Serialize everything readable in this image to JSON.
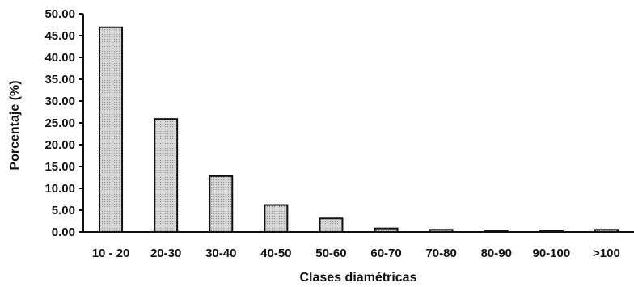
{
  "chart_data": {
    "type": "bar",
    "title": "",
    "xlabel": "Clases diamétricas",
    "ylabel": "Porcentaje (%)",
    "categories": [
      "10 - 20",
      "20-30",
      "30-40",
      "40-50",
      "50-60",
      "60-70",
      "70-80",
      "80-90",
      "90-100",
      ">100"
    ],
    "values": [
      46.9,
      25.9,
      12.8,
      6.2,
      3.1,
      0.8,
      0.5,
      0.3,
      0.2,
      0.5
    ],
    "ylim": [
      0,
      50
    ],
    "yticks": [
      "0.00",
      "5.00",
      "10.00",
      "15.00",
      "20.00",
      "25.00",
      "30.00",
      "35.00",
      "40.00",
      "45.00",
      "50.00"
    ],
    "grid": false,
    "legend": "none",
    "bar_color": "#cfcfcf"
  }
}
